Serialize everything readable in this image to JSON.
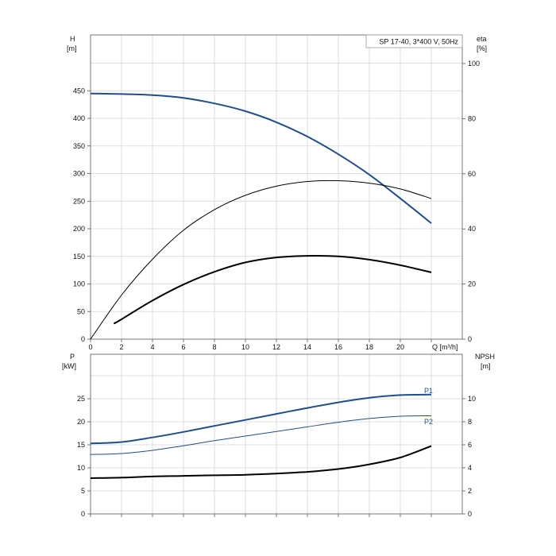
{
  "chart_data": [
    {
      "type": "line",
      "title": "SP 17-40, 3*400 V, 50Hz",
      "xlabel": "Q [m³/h]",
      "ylabel_left": "H",
      "ylabel_left_unit": "[m]",
      "ylabel_right": "eta",
      "ylabel_right_unit": "[%]",
      "xlim": [
        0,
        24
      ],
      "ylim_left": [
        0,
        450
      ],
      "ylim_right": [
        0,
        100
      ],
      "x_ticks": [
        "0",
        "2",
        "4",
        "6",
        "8",
        "10",
        "12",
        "14",
        "16",
        "18",
        "20"
      ],
      "y_left_ticks": [
        "0",
        "50",
        "100",
        "150",
        "200",
        "250",
        "300",
        "350",
        "400",
        "450"
      ],
      "y_right_ticks": [
        "0",
        "20",
        "40",
        "60",
        "80",
        "100"
      ],
      "grid": true,
      "series": [
        {
          "color": "#1f4e8c",
          "axis": "left",
          "width": 2,
          "x": [
            0,
            2,
            4,
            6,
            8,
            10,
            12,
            14,
            16,
            18,
            20,
            22
          ],
          "y": [
            445,
            444,
            442,
            437,
            427,
            413,
            393,
            367,
            335,
            298,
            255,
            210
          ]
        },
        {
          "color": "#000000",
          "axis": "right",
          "width": 1,
          "x": [
            0,
            2,
            4,
            6,
            8,
            10,
            12,
            14,
            16,
            18,
            20,
            22
          ],
          "y": [
            0,
            16,
            29,
            39.5,
            47,
            52.2,
            55.5,
            57.2,
            57.5,
            56.6,
            54.5,
            51
          ]
        },
        {
          "color": "#000000",
          "axis": "left",
          "width": 2,
          "x": [
            1.5,
            2,
            4,
            6,
            8,
            10,
            12,
            14,
            16,
            18,
            20,
            22
          ],
          "y": [
            28,
            36,
            70,
            99,
            122,
            139,
            148,
            151,
            150,
            144,
            134,
            121
          ]
        }
      ]
    },
    {
      "type": "line",
      "xlabel": "",
      "ylabel_left": "P",
      "ylabel_left_unit": "[kW]",
      "ylabel_right": "NPSH",
      "ylabel_right_unit": "[m]",
      "xlim": [
        0,
        24
      ],
      "ylim_left": [
        0,
        30
      ],
      "ylim_right": [
        0,
        12
      ],
      "y_left_ticks": [
        "0",
        "5",
        "10",
        "15",
        "20",
        "25"
      ],
      "y_right_ticks": [
        "0",
        "2",
        "4",
        "6",
        "8",
        "10"
      ],
      "grid": true,
      "series": [
        {
          "name": "P1",
          "color": "#1f4e8c",
          "axis": "left",
          "width": 2,
          "x": [
            0,
            2,
            4,
            6,
            8,
            10,
            12,
            14,
            16,
            18,
            20,
            22
          ],
          "y": [
            15.3,
            15.6,
            16.6,
            17.8,
            19.1,
            20.4,
            21.7,
            23,
            24.2,
            25.2,
            25.8,
            25.9
          ]
        },
        {
          "name": "P2",
          "color": "#1f4e8c",
          "axis": "left",
          "width": 1,
          "x": [
            0,
            2,
            4,
            6,
            8,
            10,
            12,
            14,
            16,
            18,
            20,
            22
          ],
          "y": [
            12.9,
            13.1,
            13.8,
            14.8,
            15.9,
            16.9,
            17.9,
            18.9,
            19.9,
            20.7,
            21.2,
            21.3
          ]
        },
        {
          "color": "#000000",
          "axis": "right",
          "width": 2,
          "x": [
            0,
            2,
            4,
            6,
            8,
            10,
            12,
            14,
            16,
            18,
            20,
            22
          ],
          "y": [
            3.1,
            3.15,
            3.25,
            3.3,
            3.35,
            3.4,
            3.5,
            3.65,
            3.9,
            4.3,
            4.9,
            5.9
          ]
        }
      ]
    }
  ]
}
